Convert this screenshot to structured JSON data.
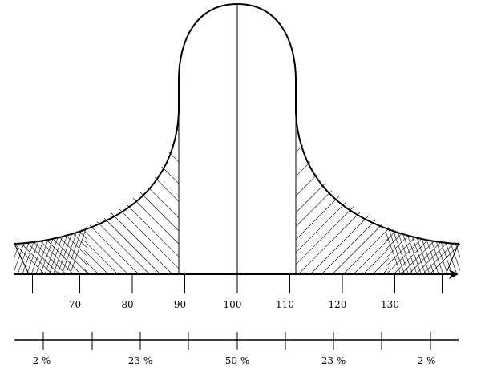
{
  "diagram": {
    "type": "bell-curve",
    "iq_axis": {
      "ticks": [
        {
          "value": 70,
          "label": "70"
        },
        {
          "value": 80,
          "label": "80"
        },
        {
          "value": 90,
          "label": "90"
        },
        {
          "value": 100,
          "label": "100"
        },
        {
          "value": 110,
          "label": "110"
        },
        {
          "value": 120,
          "label": "120"
        },
        {
          "value": 130,
          "label": "130"
        }
      ]
    },
    "percent_scale": {
      "bands": [
        {
          "label": "2 %"
        },
        {
          "label": "23 %"
        },
        {
          "label": "50 %"
        },
        {
          "label": "23 %"
        },
        {
          "label": "2 %"
        }
      ]
    }
  }
}
